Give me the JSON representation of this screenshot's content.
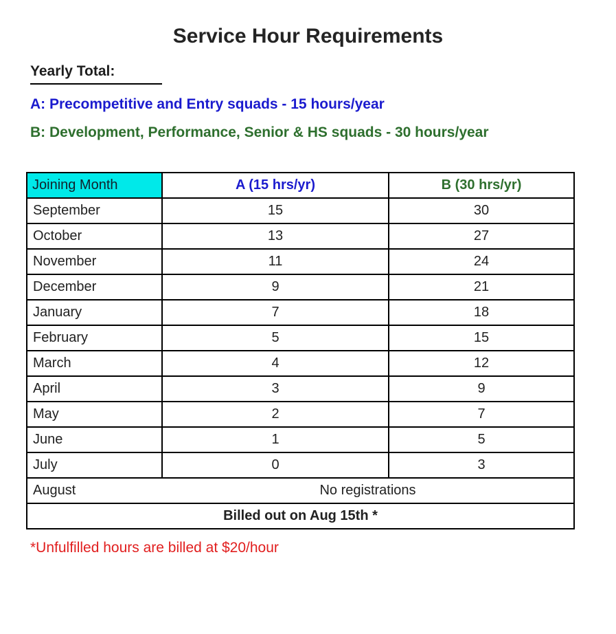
{
  "title": "Service Hour Requirements",
  "intro": {
    "yearly_total_label": "Yearly Total:",
    "legend_a": "A: Precompetitive and Entry squads - 15 hours/year",
    "legend_b": "B: Development, Performance, Senior & HS squads - 30 hours/year"
  },
  "table": {
    "headers": [
      "Joining Month",
      "A (15 hrs/yr)",
      "B (30 hrs/yr)"
    ],
    "rows": [
      {
        "month": "September",
        "a": "15",
        "b": "30"
      },
      {
        "month": "October",
        "a": "13",
        "b": "27"
      },
      {
        "month": "November",
        "a": "11",
        "b": "24"
      },
      {
        "month": "December",
        "a": "9",
        "b": "21"
      },
      {
        "month": "January",
        "a": "7",
        "b": "18"
      },
      {
        "month": "February",
        "a": "5",
        "b": "15"
      },
      {
        "month": "March",
        "a": "4",
        "b": "12"
      },
      {
        "month": "April",
        "a": "3",
        "b": "9"
      },
      {
        "month": "May",
        "a": "2",
        "b": "7"
      },
      {
        "month": "June",
        "a": "1",
        "b": "5"
      },
      {
        "month": "July",
        "a": "0",
        "b": "3"
      }
    ],
    "august": {
      "month": "August",
      "note": "No registrations"
    },
    "billed_note": "Billed out on Aug 15th *"
  },
  "footnote": "*Unfulfilled hours are billed at $20/hour",
  "colors": {
    "squad_a_blue": "#1b1bce",
    "squad_b_green": "#2e6f2e",
    "header_cyan": "#00e9e9",
    "footnote_red": "#e11e1e",
    "text_dark": "#212121",
    "border_black": "#000000"
  }
}
